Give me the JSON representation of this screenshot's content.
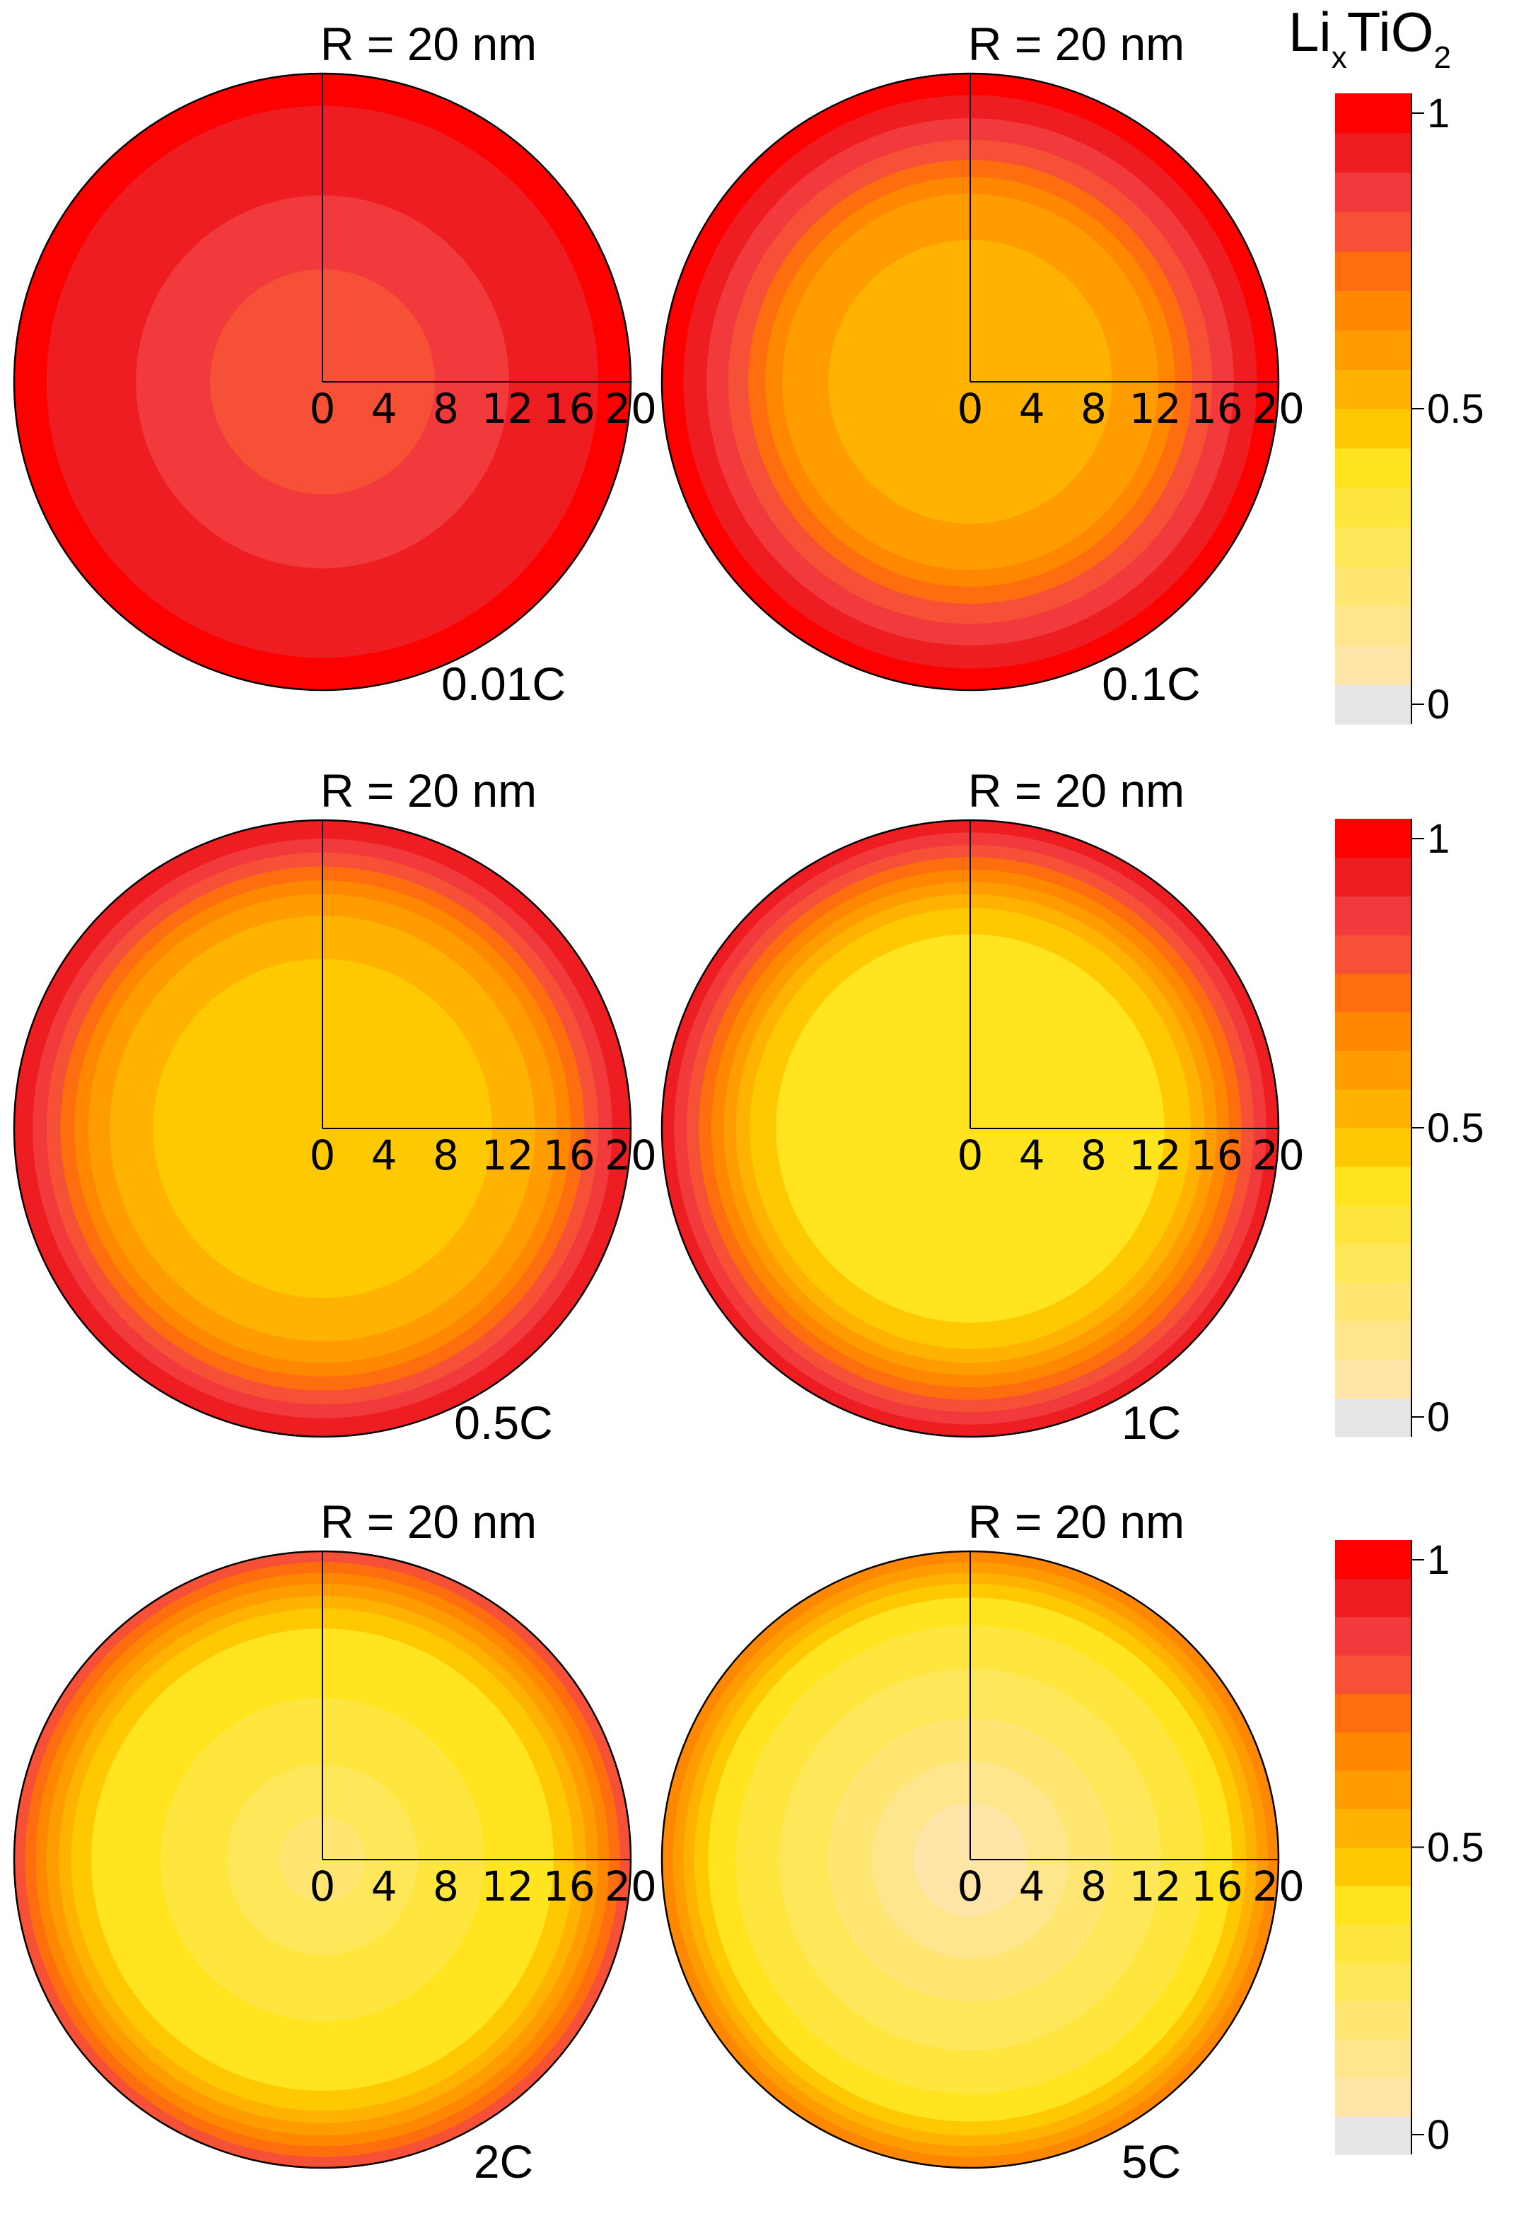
{
  "figure": {
    "colorbar_title": {
      "base": "Li",
      "sub1": "x",
      "mid": "TiO",
      "sub2": "2"
    }
  },
  "chart_data": {
    "type": "heatmap",
    "description_free": true,
    "rlabel_values": [
      "0",
      "4",
      "8",
      "12",
      "16",
      "20"
    ],
    "colorbar": {
      "ticks": [
        "1",
        "0.5",
        "0"
      ],
      "bands_bottom_to_top": [
        "#e5e5e5",
        "#ffe5a8",
        "#ffe58c",
        "#ffe673",
        "#ffe75a",
        "#ffe63e",
        "#ffe41f",
        "#ffc900",
        "#ffb300",
        "#ff9d00",
        "#ff8800",
        "#ff6e0e",
        "#f65036",
        "#f2393b",
        "#ee1d22",
        "#ff0000"
      ]
    },
    "panels": [
      {
        "label": "0.01C",
        "radius_label": "R = 20 nm",
        "shells_outer_to_inner": [
          {
            "r": 20,
            "color": "#ff0000"
          },
          {
            "r": 17.9,
            "color": "#ee1d22"
          },
          {
            "r": 12.1,
            "color": "#f2393b"
          },
          {
            "r": 7.3,
            "color": "#f65036"
          }
        ]
      },
      {
        "label": "0.1C",
        "radius_label": "R = 20 nm",
        "shells_outer_to_inner": [
          {
            "r": 20,
            "color": "#ff0000"
          },
          {
            "r": 18.6,
            "color": "#ee1d22"
          },
          {
            "r": 17.1,
            "color": "#f2393b"
          },
          {
            "r": 15.7,
            "color": "#f65036"
          },
          {
            "r": 14.4,
            "color": "#ff6e0e"
          },
          {
            "r": 13.3,
            "color": "#ff8800"
          },
          {
            "r": 12.2,
            "color": "#ff9d00"
          },
          {
            "r": 9.2,
            "color": "#ffb300"
          }
        ]
      },
      {
        "label": "0.5C",
        "radius_label": "R = 20 nm",
        "shells_outer_to_inner": [
          {
            "r": 20,
            "color": "#ee1d22"
          },
          {
            "r": 18.8,
            "color": "#f2393b"
          },
          {
            "r": 17.9,
            "color": "#f65036"
          },
          {
            "r": 17,
            "color": "#ff6e0e"
          },
          {
            "r": 16.1,
            "color": "#ff8800"
          },
          {
            "r": 15.2,
            "color": "#ff9d00"
          },
          {
            "r": 13.8,
            "color": "#ffb300"
          },
          {
            "r": 11,
            "color": "#ffc900"
          }
        ]
      },
      {
        "label": "1C",
        "radius_label": "R = 20 nm",
        "shells_outer_to_inner": [
          {
            "r": 20,
            "color": "#ee1d22"
          },
          {
            "r": 19.2,
            "color": "#f2393b"
          },
          {
            "r": 18.4,
            "color": "#f65036"
          },
          {
            "r": 17.6,
            "color": "#ff6e0e"
          },
          {
            "r": 16.8,
            "color": "#ff8800"
          },
          {
            "r": 16,
            "color": "#ff9d00"
          },
          {
            "r": 15.2,
            "color": "#ffb300"
          },
          {
            "r": 14.3,
            "color": "#ffc900"
          },
          {
            "r": 12.6,
            "color": "#ffe41f"
          }
        ]
      },
      {
        "label": "2C",
        "radius_label": "R = 20 nm",
        "shells_outer_to_inner": [
          {
            "r": 20,
            "color": "#f65036"
          },
          {
            "r": 19.3,
            "color": "#ff6e0e"
          },
          {
            "r": 18.6,
            "color": "#ff8800"
          },
          {
            "r": 17.9,
            "color": "#ff9d00"
          },
          {
            "r": 17.1,
            "color": "#ffb300"
          },
          {
            "r": 16.3,
            "color": "#ffc900"
          },
          {
            "r": 15,
            "color": "#ffe41f"
          },
          {
            "r": 10.5,
            "color": "#ffe63e"
          },
          {
            "r": 6.2,
            "color": "#ffe75a"
          },
          {
            "r": 2.8,
            "color": "#ffe673"
          }
        ]
      },
      {
        "label": "5C",
        "radius_label": "R = 20 nm",
        "shells_outer_to_inner": [
          {
            "r": 20,
            "color": "#ff8800"
          },
          {
            "r": 19.3,
            "color": "#ff9d00"
          },
          {
            "r": 18.6,
            "color": "#ffb300"
          },
          {
            "r": 17.9,
            "color": "#ffc900"
          },
          {
            "r": 17,
            "color": "#ffe41f"
          },
          {
            "r": 15.2,
            "color": "#ffe63e"
          },
          {
            "r": 12.4,
            "color": "#ffe75a"
          },
          {
            "r": 9.2,
            "color": "#ffe673"
          },
          {
            "r": 6.4,
            "color": "#ffe58c"
          },
          {
            "r": 3.7,
            "color": "#ffe5a8"
          }
        ]
      }
    ]
  }
}
